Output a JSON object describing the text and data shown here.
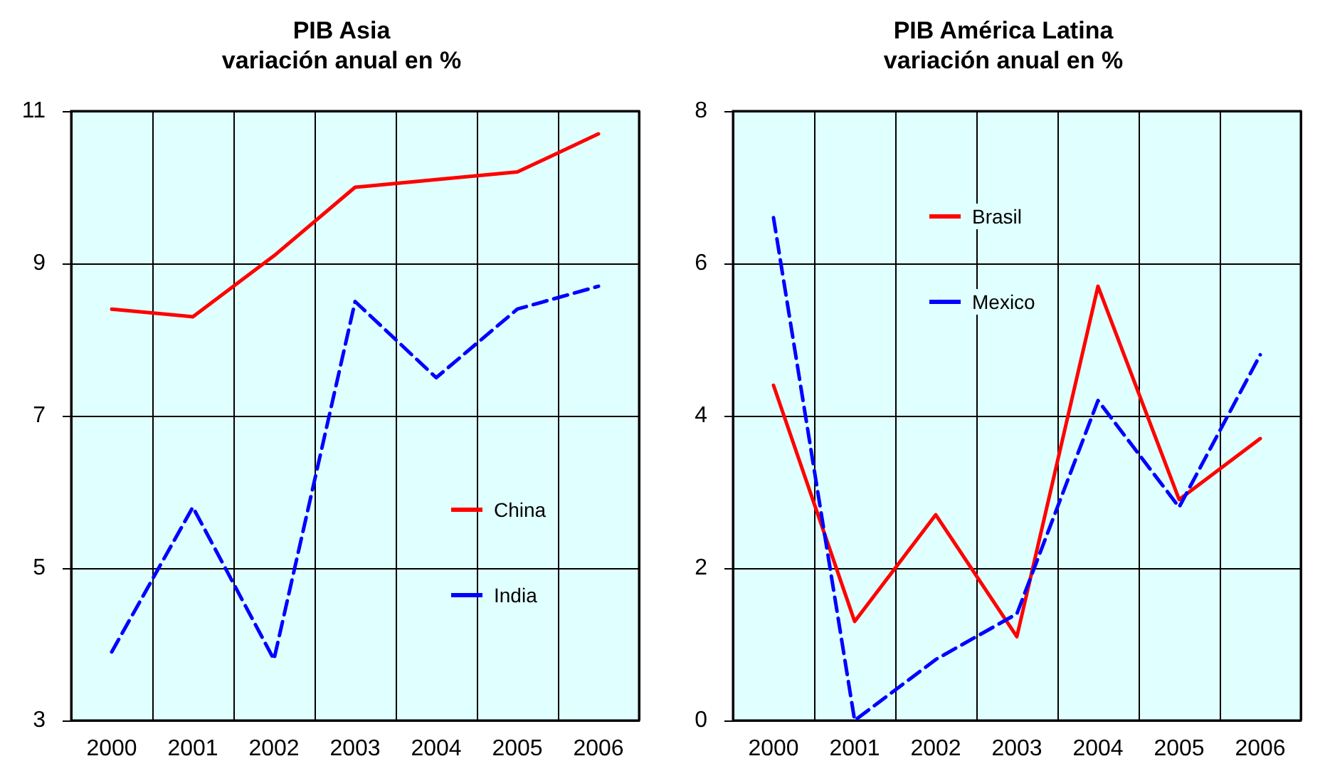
{
  "chart_data": [
    {
      "type": "line",
      "title": "PIB Asia",
      "subtitle": "variación anual en %",
      "categories": [
        "2000",
        "2001",
        "2002",
        "2003",
        "2004",
        "2005",
        "2006"
      ],
      "series": [
        {
          "name": "China",
          "color": "#ff0000",
          "values": [
            8.4,
            8.3,
            9.1,
            10.0,
            10.1,
            10.2,
            10.7
          ],
          "line_style": "solid"
        },
        {
          "name": "India",
          "color": "#0000ff",
          "values": [
            3.9,
            5.8,
            3.8,
            8.5,
            7.5,
            8.4,
            8.7
          ],
          "line_style": "dashed"
        }
      ],
      "ylim": [
        3,
        11
      ],
      "yticks": [
        3,
        5,
        7,
        9,
        11
      ],
      "grid": true,
      "legend": "right",
      "marker": "none"
    },
    {
      "type": "line",
      "title": "PIB América Latina",
      "subtitle": "variación anual en %",
      "categories": [
        "2000",
        "2001",
        "2002",
        "2003",
        "2004",
        "2005",
        "2006"
      ],
      "series": [
        {
          "name": "Brasil",
          "color": "#ff0000",
          "values": [
            4.4,
            1.3,
            2.7,
            1.1,
            5.7,
            2.9,
            3.7
          ],
          "line_style": "solid"
        },
        {
          "name": "Mexico",
          "color": "#0000ff",
          "values": [
            6.6,
            0.0,
            0.8,
            1.4,
            4.2,
            2.8,
            4.8
          ],
          "line_style": "dashed"
        }
      ],
      "ylim": [
        0,
        8
      ],
      "yticks": [
        0,
        2,
        4,
        6,
        8
      ],
      "grid": true,
      "legend": "top",
      "marker": "none"
    }
  ]
}
